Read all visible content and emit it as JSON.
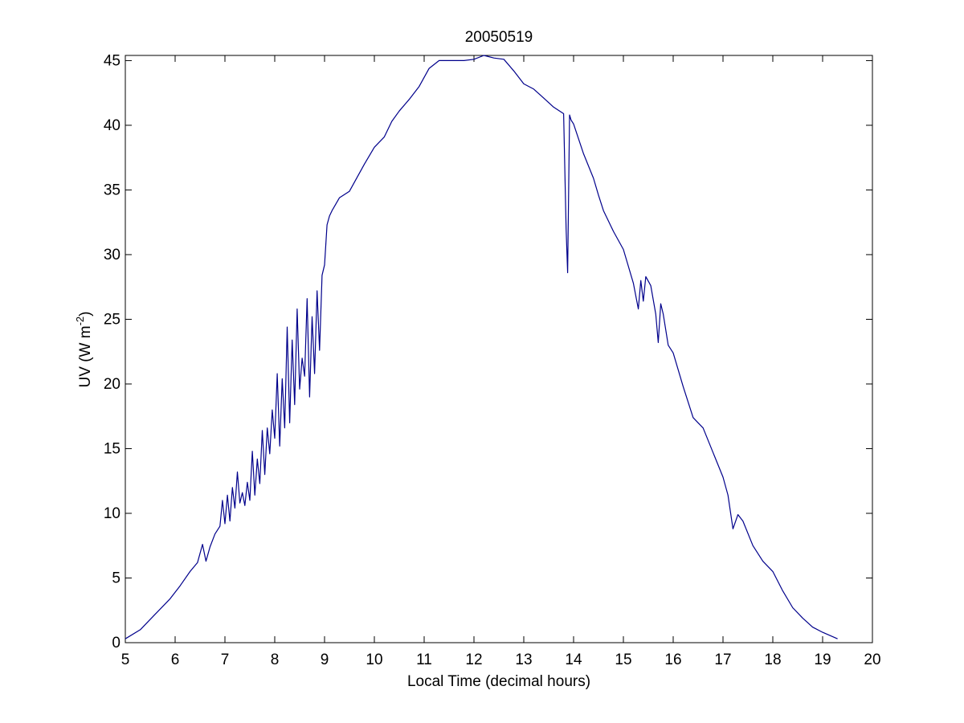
{
  "chart_data": {
    "type": "line",
    "title": "20050519",
    "xlabel": "Local Time (decimal hours)",
    "ylabel": "UV (W m",
    "ylabel_superscript": "-2",
    "ylabel_close": ")",
    "xlim": [
      5,
      20
    ],
    "ylim": [
      0,
      45.4
    ],
    "xticks": [
      5,
      6,
      7,
      8,
      9,
      10,
      11,
      12,
      13,
      14,
      15,
      16,
      17,
      18,
      19,
      20
    ],
    "yticks": [
      0,
      5,
      10,
      15,
      20,
      25,
      30,
      35,
      40,
      45
    ],
    "grid": false,
    "line_color": "#00008b",
    "series": [
      {
        "x": [
          5.0,
          5.3,
          5.6,
          5.9,
          6.1,
          6.3,
          6.45,
          6.55,
          6.62,
          6.7,
          6.8,
          6.9,
          6.95,
          7.0,
          7.05,
          7.1,
          7.15,
          7.2,
          7.25,
          7.3,
          7.35,
          7.4,
          7.45,
          7.5,
          7.55,
          7.6,
          7.65,
          7.7,
          7.75,
          7.8,
          7.85,
          7.9,
          7.95,
          8.0,
          8.05,
          8.1,
          8.15,
          8.2,
          8.25,
          8.3,
          8.35,
          8.4,
          8.45,
          8.5,
          8.55,
          8.6,
          8.65,
          8.7,
          8.75,
          8.8,
          8.85,
          8.9,
          8.95,
          9.0,
          9.05,
          9.1,
          9.15,
          9.3,
          9.5,
          9.6,
          9.8,
          10.0,
          10.2,
          10.35,
          10.5,
          10.7,
          10.9,
          11.1,
          11.3,
          11.5,
          11.8,
          12.0,
          12.2,
          12.4,
          12.6,
          12.8,
          13.0,
          13.2,
          13.4,
          13.6,
          13.8,
          13.85,
          13.88,
          13.92,
          13.95,
          14.0,
          14.2,
          14.4,
          14.5,
          14.6,
          14.8,
          15.0,
          15.2,
          15.3,
          15.35,
          15.4,
          15.45,
          15.55,
          15.65,
          15.7,
          15.75,
          15.8,
          15.9,
          16.0,
          16.2,
          16.4,
          16.5,
          16.6,
          16.8,
          17.0,
          17.1,
          17.2,
          17.3,
          17.4,
          17.6,
          17.8,
          18.0,
          18.2,
          18.4,
          18.6,
          18.8,
          19.0,
          19.3
        ],
        "y": [
          0.3,
          1.0,
          2.2,
          3.4,
          4.4,
          5.5,
          6.2,
          7.6,
          6.3,
          7.4,
          8.4,
          9.0,
          11.0,
          9.2,
          11.4,
          9.4,
          12.0,
          10.4,
          13.2,
          10.8,
          11.6,
          10.6,
          12.4,
          11.0,
          14.8,
          11.4,
          14.2,
          12.3,
          16.4,
          13.0,
          16.6,
          14.6,
          18.0,
          15.8,
          20.8,
          15.2,
          20.4,
          16.6,
          24.4,
          17.0,
          23.4,
          18.4,
          25.8,
          19.6,
          22.0,
          20.6,
          26.6,
          19.0,
          25.2,
          20.8,
          27.2,
          22.6,
          28.4,
          29.2,
          32.3,
          33.0,
          33.4,
          34.4,
          34.9,
          35.6,
          37.0,
          38.3,
          39.1,
          40.3,
          41.1,
          42.0,
          43.0,
          44.4,
          45.0,
          45.0,
          45.0,
          45.1,
          45.4,
          45.2,
          45.1,
          44.2,
          43.2,
          42.8,
          42.1,
          41.4,
          40.9,
          32.0,
          28.6,
          40.8,
          40.4,
          40.1,
          37.8,
          35.9,
          34.6,
          33.4,
          31.8,
          30.4,
          27.8,
          25.8,
          28.0,
          26.4,
          28.3,
          27.6,
          25.4,
          23.2,
          26.2,
          25.4,
          23.0,
          22.4,
          19.8,
          17.4,
          17.0,
          16.6,
          14.7,
          12.8,
          11.4,
          8.8,
          9.9,
          9.4,
          7.5,
          6.3,
          5.5,
          4.0,
          2.7,
          1.9,
          1.2,
          0.8,
          0.3
        ]
      }
    ]
  }
}
